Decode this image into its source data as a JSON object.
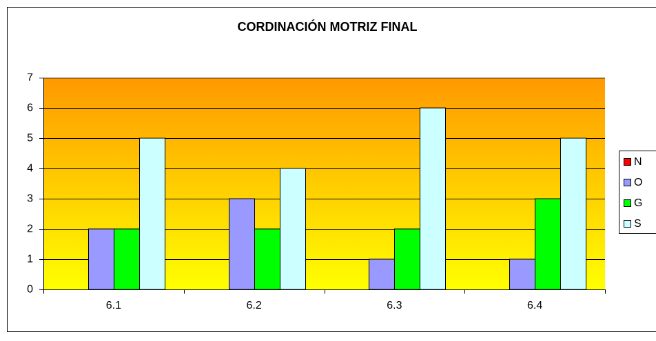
{
  "chart_data": {
    "type": "bar",
    "title": "CORDINACIÓN MOTRIZ FINAL",
    "categories": [
      "6.1",
      "6.2",
      "6.3",
      "6.4"
    ],
    "series": [
      {
        "name": "N",
        "color": "#ff0000",
        "values": [
          0,
          0,
          0,
          0
        ]
      },
      {
        "name": "O",
        "color": "#9999ff",
        "values": [
          2,
          3,
          1,
          1
        ]
      },
      {
        "name": "G",
        "color": "#00ff00",
        "values": [
          2,
          2,
          2,
          3
        ]
      },
      {
        "name": "S",
        "color": "#ccffff",
        "values": [
          5,
          4,
          6,
          5
        ]
      }
    ],
    "ylim": [
      0,
      7
    ],
    "yticks": [
      0,
      1,
      2,
      3,
      4,
      5,
      6,
      7
    ],
    "grid": true,
    "legend": "right"
  }
}
